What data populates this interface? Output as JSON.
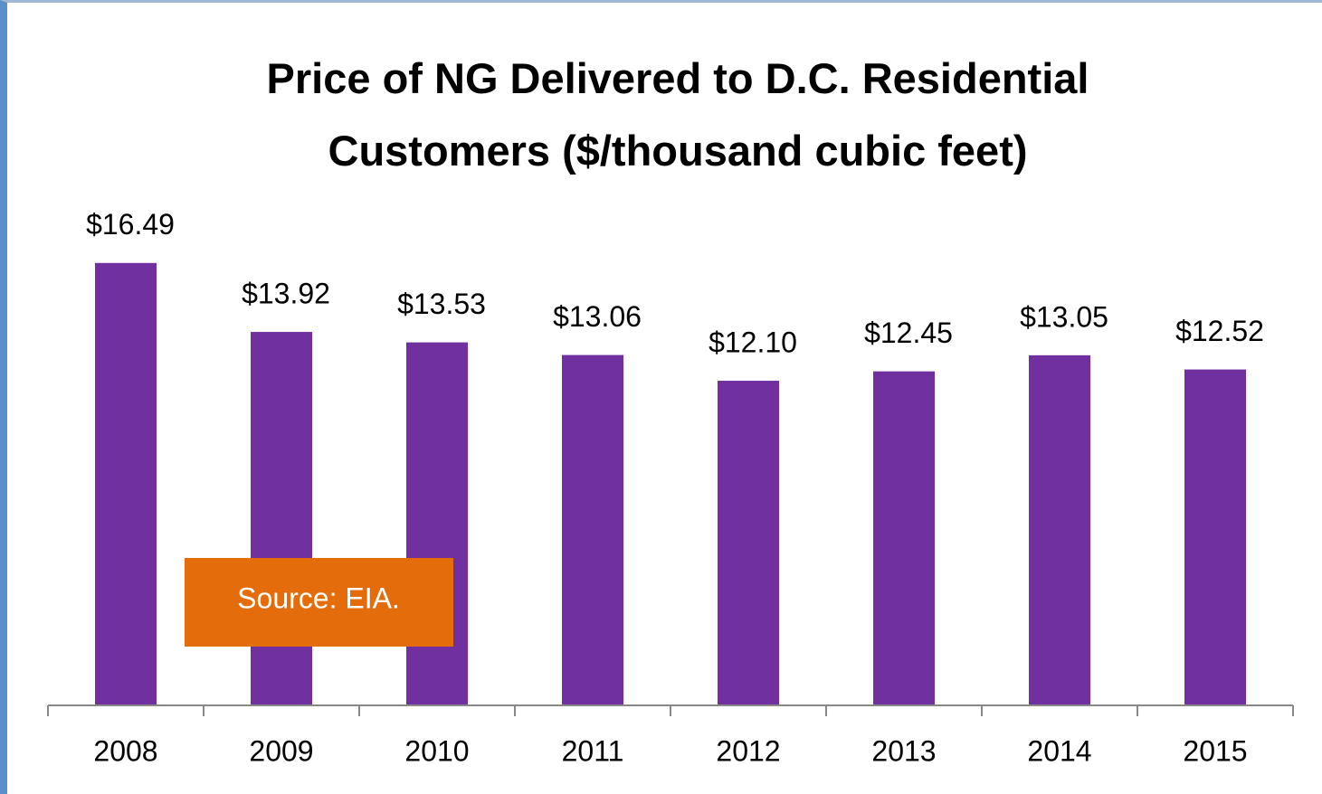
{
  "chart_data": {
    "type": "bar",
    "title": "Price of NG Delivered to D.C. Residential Customers ($/thousand cubic feet)",
    "categories": [
      "2008",
      "2009",
      "2010",
      "2011",
      "2012",
      "2013",
      "2014",
      "2015"
    ],
    "values": [
      16.49,
      13.92,
      13.53,
      13.06,
      12.1,
      12.45,
      13.05,
      12.52
    ],
    "value_labels": [
      "$16.49",
      "$13.92",
      "$13.53",
      "$13.06",
      "$12.10",
      "$12.45",
      "$13.05",
      "$12.52"
    ],
    "color": "#7030a0",
    "ylim": [
      0,
      18
    ],
    "annotation": "Source: EIA.",
    "annotation_color": "#e46c0a"
  }
}
